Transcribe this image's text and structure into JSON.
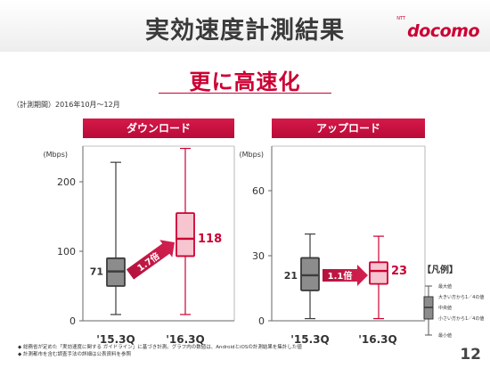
{
  "page": {
    "title": "実効速度計測結果",
    "subtitle": "更に高速化",
    "period": "（計測期間）2016年10月～12月",
    "brand": "docomo",
    "brand_small": "NTT",
    "page_number": "12"
  },
  "footnotes": [
    "総務省が定めた「実効速度に関する ガイドライン」に基づき計測。グラフ内の数値は、AndroidとiOSの計測結果を集計した値",
    "計測都市を含む調査手法の詳細は公表資料を参照"
  ],
  "legend": {
    "title": "【凡例】",
    "items": [
      "最大値",
      "大きい方から1／4の値",
      "中央値",
      "小さい方から1／4の値",
      "最小値"
    ]
  },
  "colors": {
    "accent": "#cc0033",
    "old_box": "#8c8c8c",
    "new_box": "#f7c5cf"
  },
  "chart_data": [
    {
      "type": "boxplot",
      "title": "ダウンロード",
      "ylabel": "(Mbps)",
      "ylim": [
        0,
        240
      ],
      "yticks": [
        0,
        100,
        200
      ],
      "categories": [
        "'15.3Q",
        "'16.3Q"
      ],
      "boxes": [
        {
          "min": 9,
          "q1": 50,
          "median": 71,
          "q3": 90,
          "max": 228,
          "label": "71"
        },
        {
          "min": 9,
          "q1": 93,
          "median": 118,
          "q3": 155,
          "max": 248,
          "label": "118"
        }
      ],
      "arrow_label": "1.7倍",
      "grid": false
    },
    {
      "type": "boxplot",
      "title": "アップロード",
      "ylabel": "(Mbps)",
      "ylim": [
        0,
        72
      ],
      "yticks": [
        0,
        30,
        60
      ],
      "categories": [
        "'15.3Q",
        "'16.3Q"
      ],
      "boxes": [
        {
          "min": 1,
          "q1": 14,
          "median": 21,
          "q3": 29,
          "max": 40,
          "label": "21"
        },
        {
          "min": 1,
          "q1": 17,
          "median": 23,
          "q3": 27,
          "max": 39,
          "label": "23"
        }
      ],
      "arrow_label": "1.1倍",
      "grid": false
    }
  ]
}
